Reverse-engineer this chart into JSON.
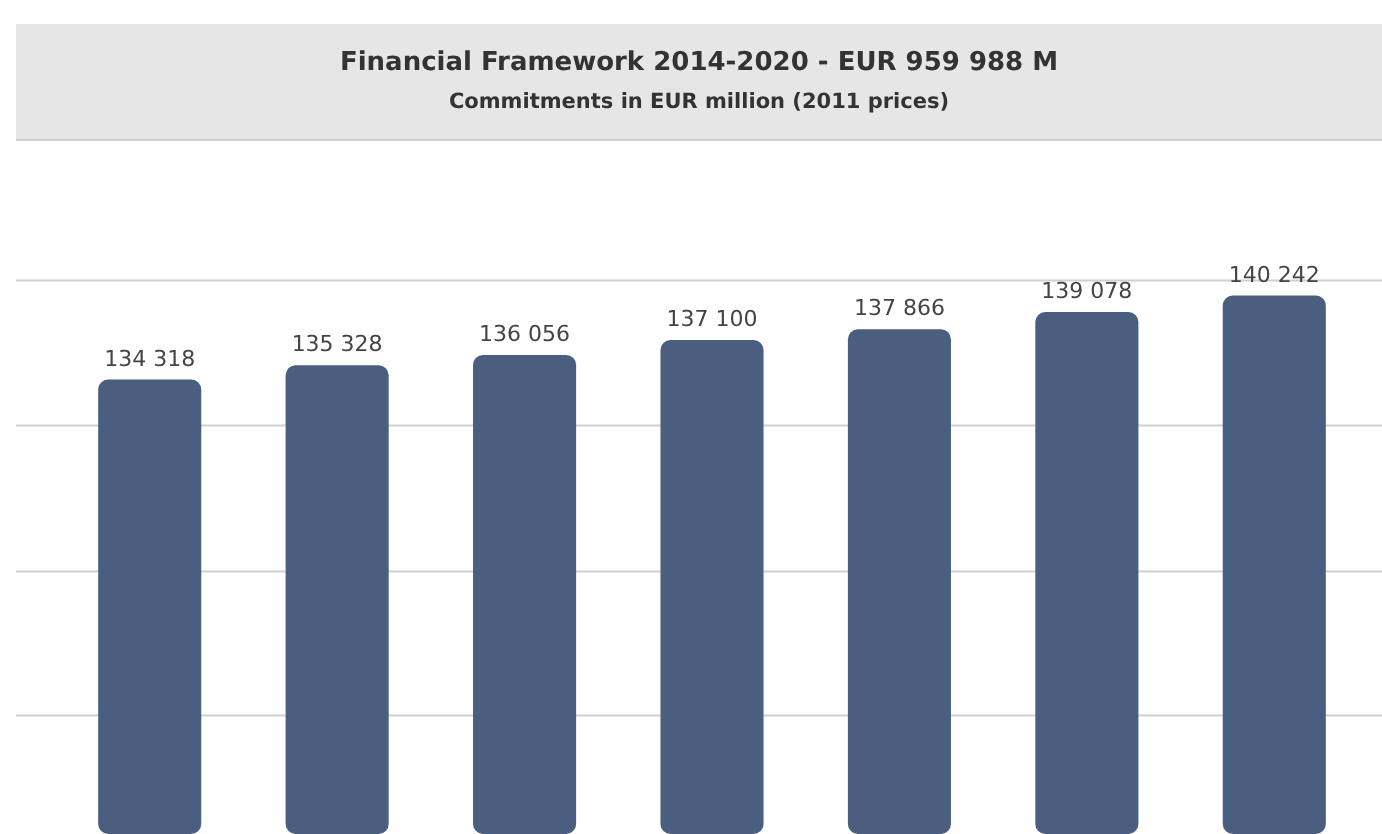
{
  "chart_data": {
    "type": "bar",
    "title": "Financial Framework 2014-2020 - EUR 959 988 M",
    "subtitle": "Commitments in EUR million  (2011 prices)",
    "categories": [
      null,
      null,
      null,
      null,
      null,
      null,
      null
    ],
    "values": [
      134318,
      135328,
      136056,
      137100,
      137866,
      139078,
      140242
    ],
    "value_labels": [
      "134 318",
      "135 328",
      "136 056",
      "137 100",
      "137 866",
      "139 078",
      "140 242"
    ],
    "color": "#4a5f7f",
    "ylim": [
      102300,
      151200
    ],
    "yticks": [
      {
        "value": 110650,
        "label": null
      },
      {
        "value": 120800,
        "label": null
      },
      {
        "value": 131080,
        "label": null
      },
      {
        "value": 141300,
        "label": null
      }
    ],
    "grid": "y"
  }
}
